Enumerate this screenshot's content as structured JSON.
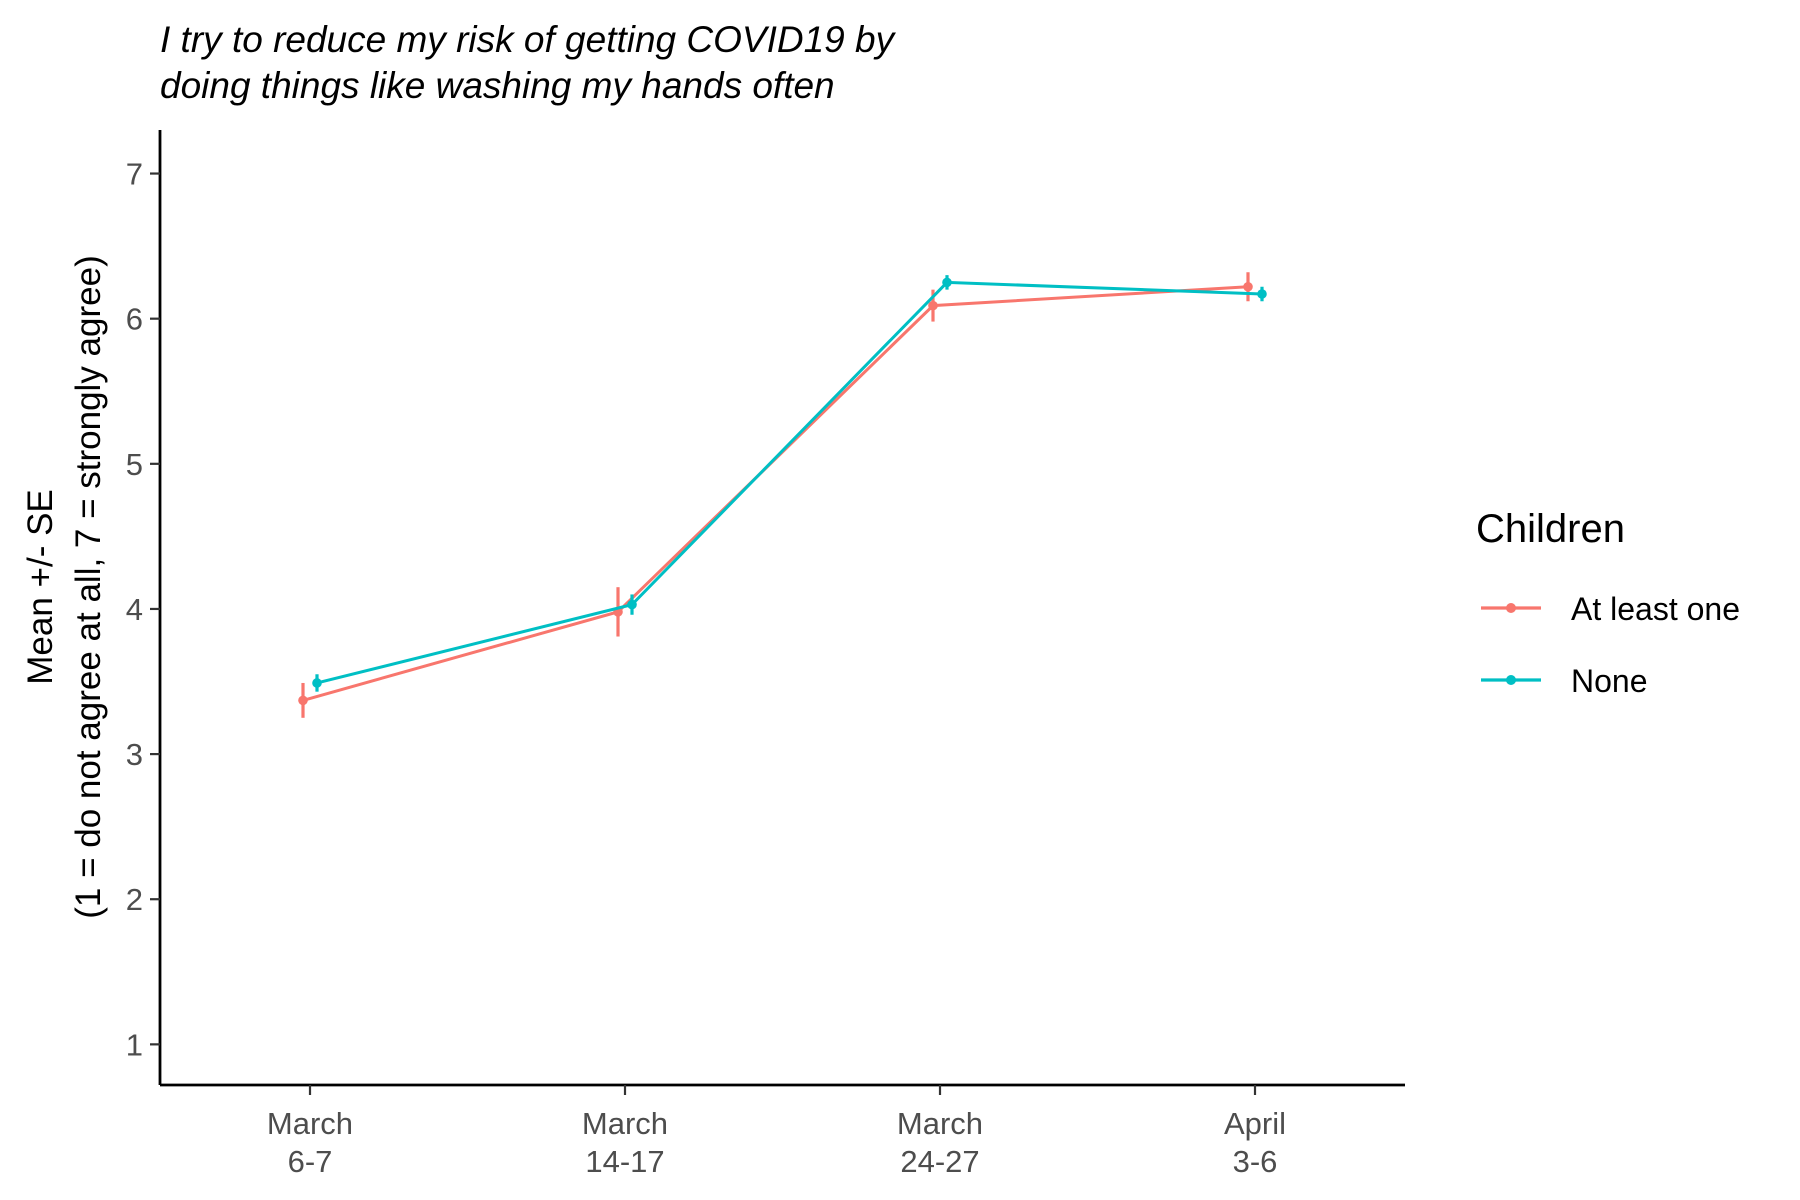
{
  "chart_data": {
    "type": "line",
    "title_lines": [
      "I try to reduce my risk of getting COVID19 by",
      "doing things like washing my hands often"
    ],
    "xlabel": "",
    "ylabel_lines": [
      "Mean +/- SE",
      "(1 = do not agree at all, 7 = strongly agree)"
    ],
    "categories": [
      [
        "March",
        "6-7"
      ],
      [
        "March",
        "14-17"
      ],
      [
        "March",
        "24-27"
      ],
      [
        "April",
        "3-6"
      ]
    ],
    "y_ticks": [
      1,
      2,
      3,
      4,
      5,
      6,
      7
    ],
    "ylim": [
      0.72,
      7.3
    ],
    "grid": false,
    "legend": {
      "title": "Children",
      "placement": "right"
    },
    "series": [
      {
        "name": "At least one",
        "color": "#F8766D",
        "values": [
          3.37,
          3.98,
          6.09,
          6.22
        ],
        "se": [
          0.12,
          0.17,
          0.11,
          0.1
        ]
      },
      {
        "name": "None",
        "color": "#00BFC4",
        "values": [
          3.49,
          4.03,
          6.25,
          6.17
        ],
        "se": [
          0.06,
          0.07,
          0.05,
          0.05
        ]
      }
    ]
  }
}
